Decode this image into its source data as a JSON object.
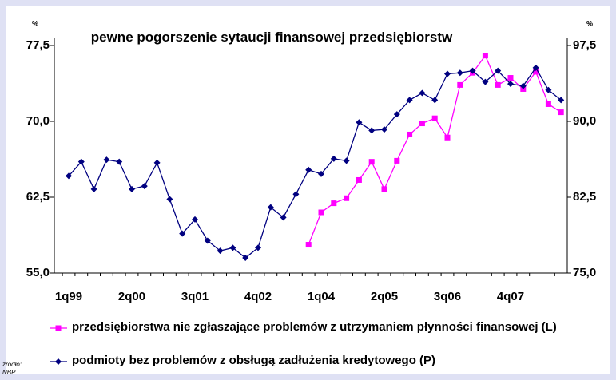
{
  "chart_data": {
    "type": "line",
    "title": "pewne pogorszenie sytaucji finansowej przedsiębiorstw",
    "ylabel": "%",
    "y2label": "%",
    "source": "źródło: NBP",
    "categories": [
      "1q99",
      null,
      null,
      null,
      null,
      "2q00",
      null,
      null,
      null,
      null,
      "3q01",
      null,
      null,
      null,
      null,
      "4q02",
      null,
      null,
      null,
      null,
      "1q04",
      null,
      null,
      null,
      null,
      "2q05",
      null,
      null,
      null,
      null,
      "3q06",
      null,
      null,
      null,
      null,
      "4q07",
      null,
      null,
      null,
      null
    ],
    "series": [
      {
        "name": "przedsiębiorstwa nie zgłaszające problemów z utrzymaniem płynności finansowej (L)",
        "color": "#ff00ff",
        "marker": "square",
        "axis": "y2",
        "values": [
          null,
          null,
          null,
          null,
          null,
          null,
          null,
          null,
          null,
          null,
          null,
          null,
          null,
          null,
          null,
          null,
          null,
          null,
          null,
          77.8,
          81.0,
          81.9,
          82.4,
          84.2,
          86.0,
          83.3,
          86.1,
          88.7,
          89.8,
          90.3,
          88.4,
          93.6,
          94.8,
          96.5,
          93.6,
          94.3,
          93.2,
          94.9,
          91.7,
          90.9
        ]
      },
      {
        "name": "podmioty bez problemów z obsługą zadłużenia kredytowego (P)",
        "color": "#000080",
        "marker": "diamond",
        "values": [
          64.6,
          66.0,
          63.3,
          66.2,
          66.0,
          63.3,
          63.6,
          65.9,
          62.3,
          58.9,
          60.3,
          58.2,
          57.2,
          57.5,
          56.5,
          57.5,
          61.5,
          60.5,
          62.8,
          65.2,
          64.8,
          66.3,
          66.1,
          69.9,
          69.1,
          69.2,
          70.7,
          72.1,
          72.8,
          72.1,
          74.7,
          74.8,
          75.0,
          73.9,
          75.0,
          73.7,
          73.5,
          75.3,
          73.1,
          72.1
        ]
      }
    ],
    "ylim": [
      55,
      77.5
    ],
    "yticks": [
      {
        "value": 55,
        "label": "55,0"
      },
      {
        "value": 62.5,
        "label": "62,5"
      },
      {
        "value": 70,
        "label": "70,0"
      },
      {
        "value": 77.5,
        "label": "77,5"
      }
    ],
    "y2lim": [
      75,
      97.5
    ],
    "y2ticks": [
      {
        "value": 75,
        "label": "75,0"
      },
      {
        "value": 82.5,
        "label": "82,5"
      },
      {
        "value": 90,
        "label": "90,0"
      },
      {
        "value": 97.5,
        "label": "97,5"
      }
    ]
  }
}
